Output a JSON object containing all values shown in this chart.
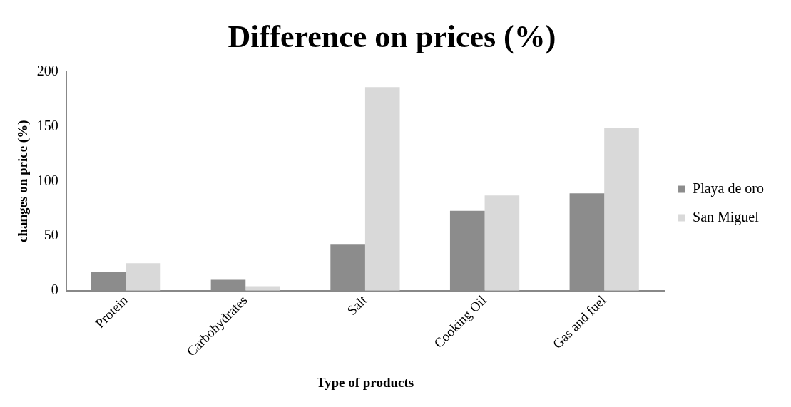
{
  "chart_data": {
    "type": "bar",
    "title": "Difference on prices (%)",
    "xlabel": "Type of products",
    "ylabel": "changes on price (%)",
    "categories": [
      "Protein",
      "Carbohydrates",
      "Salt",
      "Cooking Oil",
      "Gas and fuel"
    ],
    "series": [
      {
        "name": "Playa de oro",
        "color": "#8c8c8c",
        "values": [
          17,
          10,
          42,
          73,
          89
        ]
      },
      {
        "name": "San Miguel",
        "color": "#d9d9d9",
        "values": [
          25,
          4,
          186,
          87,
          149
        ]
      }
    ],
    "ylim": [
      0,
      200
    ],
    "yticks": [
      0,
      50,
      100,
      150,
      200
    ],
    "grid": false,
    "legend": "right"
  }
}
